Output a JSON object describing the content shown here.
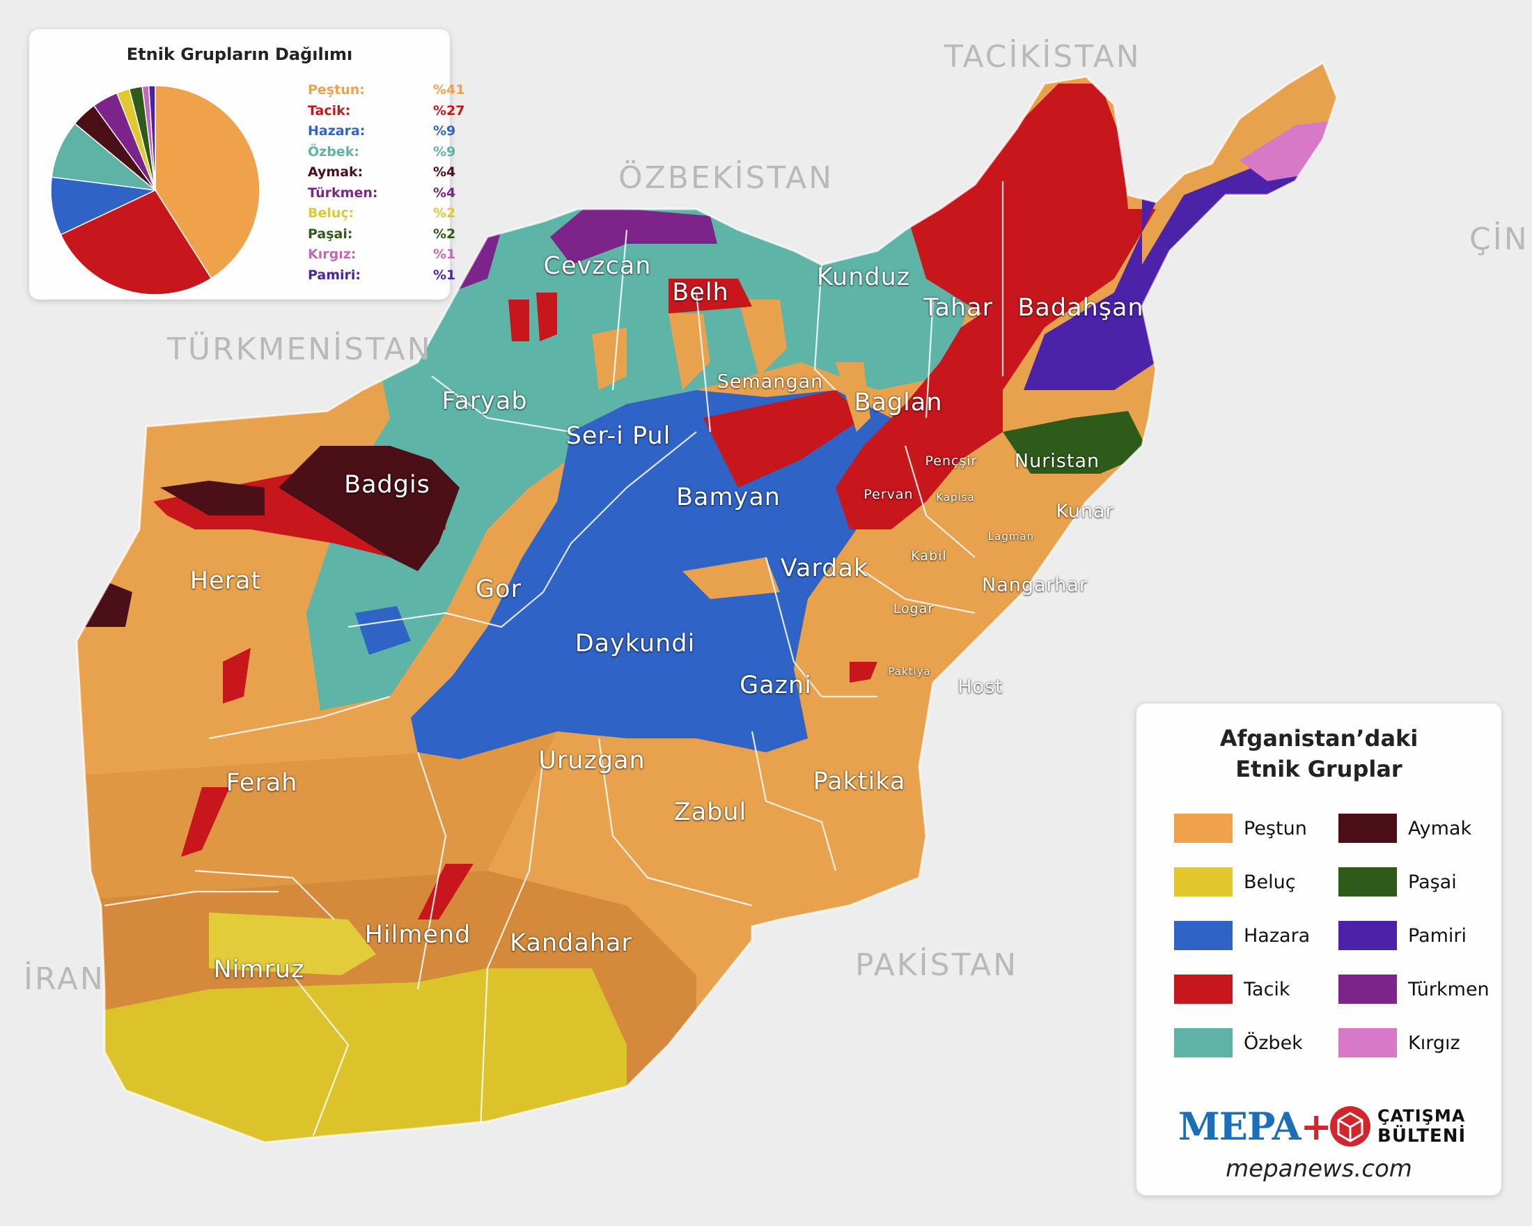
{
  "countries": {
    "tajikistan": "TACİKİSTAN",
    "uzbekistan": "ÖZBEKİSTAN",
    "turkmenistan": "TÜRKMENİSTAN",
    "china": "ÇİN",
    "iran": "İRAN",
    "pakistan": "PAKİSTAN"
  },
  "provinces": {
    "cevzcan": "Cevzcan",
    "belh": "Belh",
    "kunduz": "Kunduz",
    "tahar": "Tahar",
    "badahsan": "Badahşan",
    "faryab": "Faryab",
    "semangan": "Semangan",
    "baglan": "Baglan",
    "seripul": "Ser-i Pul",
    "badgis": "Badgis",
    "bamyan": "Bamyan",
    "pencsir": "Pençşir",
    "nuristan": "Nuristan",
    "pervan": "Pervan",
    "kapisa": "Kapisa",
    "kunar": "Kunar",
    "lagman": "Lagman",
    "herat": "Herat",
    "kabil": "Kabil",
    "vardak": "Vardak",
    "gor": "Gor",
    "nangarhar": "Nangarhar",
    "logar": "Logar",
    "daykundi": "Daykundi",
    "paktiya": "Paktiya",
    "host": "Host",
    "gazni": "Gazni",
    "uruzgan": "Uruzgan",
    "ferah": "Ferah",
    "paktika": "Paktika",
    "zabul": "Zabul",
    "hilmend": "Hilmend",
    "kandahar": "Kandahar",
    "nimruz": "Nimruz"
  },
  "pie": {
    "title": "Etnik Grupların Dağılımı",
    "items": [
      {
        "name": "Peştun:",
        "pct": "%41",
        "value": 41,
        "color": "#efa24a"
      },
      {
        "name": "Tacik:",
        "pct": "%27",
        "value": 27,
        "color": "#c8161d"
      },
      {
        "name": "Hazara:",
        "pct": "%9",
        "value": 9,
        "color": "#2f63c6"
      },
      {
        "name": "Özbek:",
        "pct": "%9",
        "value": 9,
        "color": "#5cb3a6"
      },
      {
        "name": "Aymak:",
        "pct": "%4",
        "value": 4,
        "color": "#4a0f17"
      },
      {
        "name": "Türkmen:",
        "pct": "%4",
        "value": 4,
        "color": "#7c2489"
      },
      {
        "name": "Beluç:",
        "pct": "%2",
        "value": 2,
        "color": "#e2c72e"
      },
      {
        "name": "Paşai:",
        "pct": "%2",
        "value": 2,
        "color": "#2f5b1a"
      },
      {
        "name": "Kırgız:",
        "pct": "%1",
        "value": 1,
        "color": "#c466b9"
      },
      {
        "name": "Pamiri:",
        "pct": "%1",
        "value": 1,
        "color": "#4b22a8"
      }
    ]
  },
  "legend": {
    "title_line1": "Afganistan’daki",
    "title_line2": "Etnik Gruplar",
    "items": [
      {
        "label": "Peştun",
        "color": "#efa24a"
      },
      {
        "label": "Aymak",
        "color": "#4a0f17"
      },
      {
        "label": "Beluç",
        "color": "#e2c72e"
      },
      {
        "label": "Paşai",
        "color": "#2f5b1a"
      },
      {
        "label": "Hazara",
        "color": "#2f63c6"
      },
      {
        "label": "Pamiri",
        "color": "#4b22a8"
      },
      {
        "label": "Tacik",
        "color": "#c8161d"
      },
      {
        "label": "Türkmen",
        "color": "#7c2489"
      },
      {
        "label": "Özbek",
        "color": "#5cb3a6"
      },
      {
        "label": "Kırgız",
        "color": "#d879c8"
      }
    ]
  },
  "brand": {
    "mepa": "MEPA",
    "plus": "+",
    "catisma_line1": "ÇATIŞMA",
    "catisma_line2": "BÜLTENİ",
    "website": "mepanews.com"
  }
}
